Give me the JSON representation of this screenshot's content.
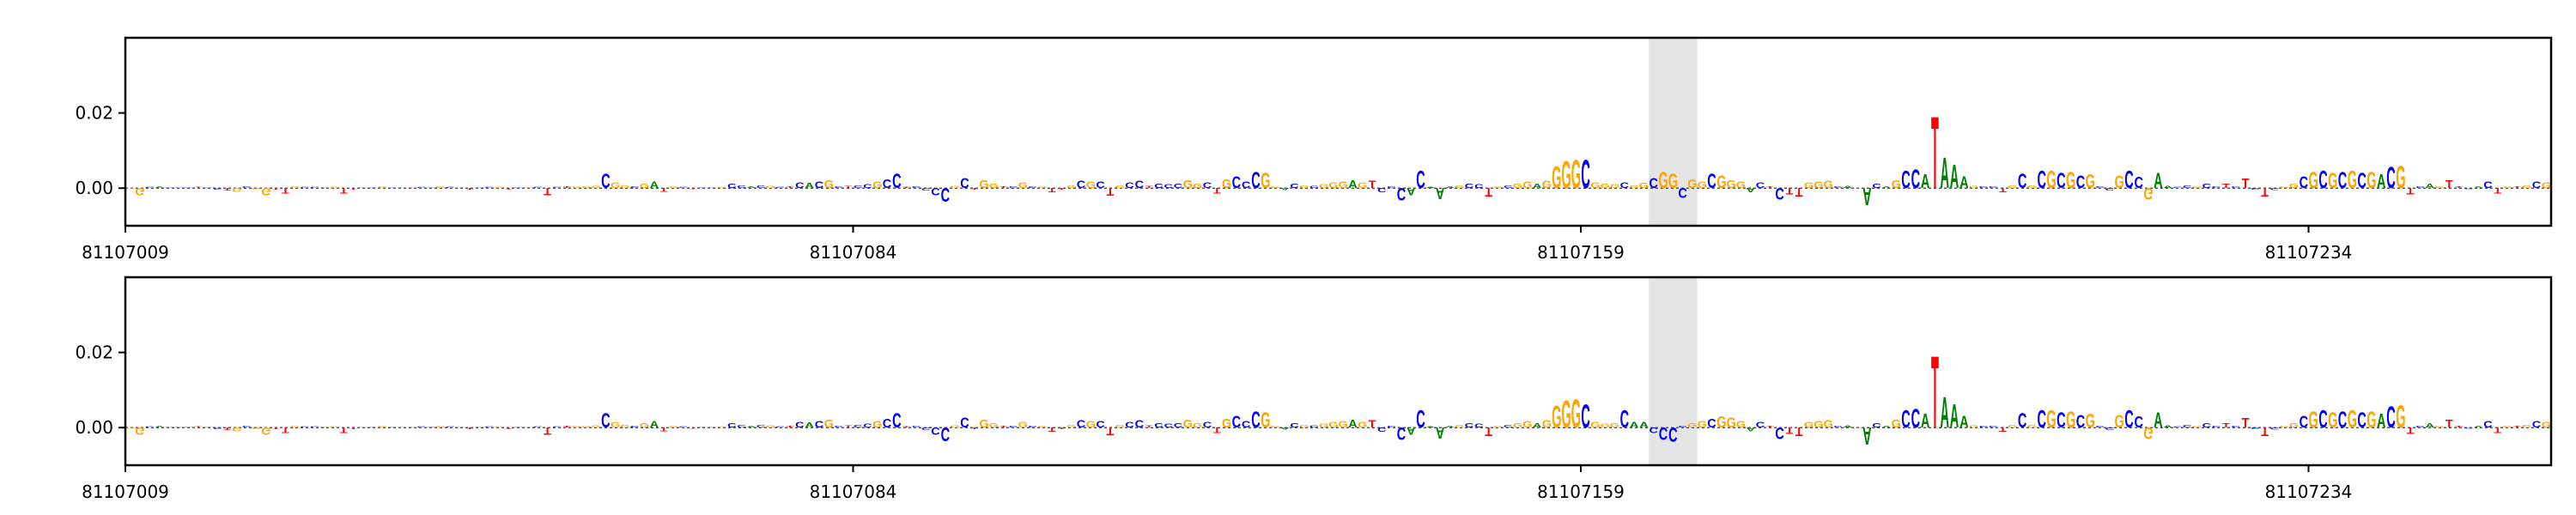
{
  "chart_data": [
    {
      "type": "logo",
      "start": 81107009,
      "xlim": [
        81107009,
        81107259
      ],
      "xticks": [
        81107009,
        81107084,
        81107159,
        81107234
      ],
      "ylim": [
        -0.01,
        0.04
      ],
      "yticks": [
        {
          "value": 0,
          "label": "0.00"
        },
        0.02
      ],
      "highlight": [
        81107166,
        81107171
      ],
      "colors": {
        "A": "#008000",
        "C": "#0000ff",
        "G": "#ffa500",
        "T": "#ff0000"
      },
      "letters": [
        "G",
        "G",
        "C",
        "A",
        "C",
        "C",
        "C",
        "T",
        "C",
        "C",
        "T",
        "G",
        "C",
        "G",
        "G",
        "T",
        "T",
        "G",
        "C",
        "C",
        "C",
        "G",
        "T",
        "T",
        "A",
        "C",
        "G",
        "C",
        "A",
        "T",
        "C",
        "C",
        "G",
        "C",
        "A",
        "T",
        "C",
        "C",
        "G",
        "T",
        "C",
        "T",
        "C",
        "T",
        "C",
        "T",
        "G",
        "G",
        "G",
        "C",
        "G",
        "G",
        "C",
        "G",
        "A",
        "T",
        "G",
        "C",
        "T",
        "C",
        "C",
        "G",
        "C",
        "C",
        "A",
        "C",
        "G",
        "C",
        "T",
        "C",
        "A",
        "C",
        "G",
        "C",
        "T",
        "C",
        "C",
        "G",
        "C",
        "C",
        "T",
        "C",
        "C",
        "C",
        "C",
        "G",
        "C",
        "T",
        "G",
        "G",
        "T",
        "C",
        "G",
        "C",
        "G",
        "T",
        "T",
        "G",
        "C",
        "G",
        "C",
        "T",
        "G",
        "C",
        "C",
        "T",
        "C",
        "C",
        "C",
        "G",
        "G",
        "C",
        "T",
        "G",
        "C",
        "C",
        "C",
        "G",
        "G",
        "A",
        "C",
        "G",
        "C",
        "G",
        "G",
        "G",
        "A",
        "G",
        "T",
        "C",
        "C",
        "C",
        "A",
        "C",
        "A",
        "A",
        "A",
        "G",
        "C",
        "C",
        "T",
        "G",
        "C",
        "G",
        "G",
        "A",
        "G",
        "G",
        "G",
        "G",
        "C",
        "G",
        "G",
        "G",
        "C",
        "G",
        "G",
        "C",
        "G",
        "G",
        "C",
        "G",
        "G",
        "C",
        "G",
        "G",
        "G",
        "A",
        "C",
        "T",
        "C",
        "T",
        "T",
        "G",
        "G",
        "G",
        "C",
        "A",
        "G",
        "A",
        "C",
        "A",
        "G",
        "C",
        "C",
        "A",
        "T",
        "A",
        "A",
        "A",
        "G",
        "C",
        "C",
        "T",
        "G",
        "C",
        "G",
        "C",
        "G",
        "C",
        "G",
        "C",
        "G",
        "C",
        "C",
        "G",
        "C",
        "C",
        "G",
        "A",
        "A",
        "C",
        "C",
        "G",
        "C",
        "C",
        "T",
        "C",
        "T",
        "C",
        "T",
        "C",
        "G",
        "G",
        "C",
        "G",
        "C",
        "G",
        "C",
        "G",
        "C",
        "G",
        "A",
        "C",
        "G",
        "T",
        "C",
        "A",
        "G",
        "T",
        "T",
        "C",
        "A",
        "C",
        "T",
        "G",
        "T",
        "G",
        "C",
        "G"
      ],
      "values": [
        -0.0003,
        -0.002,
        0.0003,
        0.0005,
        0.0002,
        0.0002,
        0.0001,
        0.0003,
        0.0002,
        -0.0005,
        -0.0008,
        -0.001,
        0.0005,
        -0.0005,
        -0.002,
        -0.0005,
        -0.0015,
        0.0005,
        0.0003,
        0.0003,
        0.0002,
        0.0003,
        -0.0015,
        -0.0004,
        0.0002,
        0.0002,
        0.0004,
        0.0002,
        0.0002,
        0.0002,
        0.0003,
        0.0002,
        0.0005,
        0.0003,
        0.0002,
        -0.0004,
        0.0002,
        0.0003,
        0.0003,
        -0.0005,
        0.0002,
        0.0002,
        0.0003,
        -0.002,
        0.0003,
        0.0004,
        0.0005,
        0.0005,
        0.0006,
        0.004,
        0.0015,
        0.0008,
        0.0005,
        0.0012,
        0.0018,
        -0.001,
        0.0004,
        0.0003,
        -0.0003,
        0.0002,
        0.0002,
        0.0003,
        0.0012,
        0.0008,
        0.0004,
        0.0008,
        0.0006,
        0.0003,
        0.0005,
        0.0015,
        0.0014,
        0.0018,
        0.0022,
        0.0005,
        0.0006,
        0.0008,
        0.001,
        0.0018,
        0.0025,
        0.004,
        0.0003,
        0.0004,
        -0.0008,
        -0.002,
        -0.0038,
        0.0006,
        0.0028,
        -0.0004,
        0.0022,
        0.0012,
        0.0004,
        0.0005,
        0.0015,
        0.0005,
        0.0004,
        -0.0012,
        -0.0004,
        0.0008,
        0.002,
        0.0018,
        0.0018,
        -0.0022,
        0.0008,
        0.0015,
        0.002,
        0.0006,
        0.0012,
        0.001,
        0.0012,
        0.0022,
        0.0012,
        0.0016,
        -0.0016,
        0.0024,
        0.0032,
        0.0018,
        0.0045,
        0.0042,
        0.0004,
        -0.0006,
        0.0012,
        0.0008,
        0.0006,
        0.001,
        0.0015,
        0.0018,
        0.0022,
        0.0015,
        0.002,
        -0.0012,
        0.0005,
        -0.0035,
        -0.002,
        0.0048,
        0.0003,
        -0.003,
        0.0004,
        0.0008,
        0.0012,
        0.001,
        -0.0025,
        0.0005,
        0.0008,
        0.0012,
        0.0018,
        0.0012,
        0.002,
        0.006,
        0.0075,
        0.0078,
        0.0078,
        0.0015,
        0.0012,
        0.001,
        0.0015,
        0.0008,
        0.0014,
        0.0028,
        0.0045,
        0.004,
        -0.0028,
        0.0025,
        0.0018,
        0.004,
        0.0035,
        0.0022,
        0.0018,
        -0.0012,
        0.0015,
        0.0005,
        -0.0032,
        -0.0018,
        -0.0025,
        0.0015,
        0.0018,
        0.002,
        0.0004,
        0.0006,
        -0.0002,
        -0.0048,
        0.0012,
        0.0004,
        0.0022,
        0.0048,
        0.0052,
        0.0038,
        0.02,
        0.0085,
        0.0065,
        0.0032,
        0.0006,
        0.0004,
        0.0005,
        -0.0012,
        0.0008,
        0.004,
        0.0008,
        0.0048,
        0.0048,
        0.0042,
        0.0045,
        0.0036,
        0.0038,
        0.0004,
        -0.0008,
        0.0035,
        0.0048,
        0.003,
        -0.0032,
        0.0042,
        0.0006,
        0.0003,
        0.0008,
        0.0005,
        0.0012,
        0.0004,
        0.0012,
        0.0004,
        0.0026,
        -0.0004,
        -0.0024,
        -0.0006,
        0.0005,
        0.0012,
        0.0032,
        0.0045,
        0.0048,
        0.0042,
        0.0045,
        0.0048,
        0.0042,
        0.0045,
        0.0038,
        0.0058,
        0.0062,
        -0.0018,
        0.0004,
        0.0012,
        0.0005,
        0.0022,
        0.0004,
        -0.0003,
        0.0005,
        0.0018,
        -0.0016,
        0.0005,
        0.0004,
        0.0008,
        0.0018,
        0.0016
      ]
    },
    {
      "type": "logo",
      "start": 81107009,
      "xlim": [
        81107009,
        81107259
      ],
      "xticks": [
        81107009,
        81107084,
        81107159,
        81107234
      ],
      "ylim": [
        -0.01,
        0.04
      ],
      "yticks": [
        {
          "value": 0,
          "label": "0.00"
        },
        0.02
      ],
      "highlight": [
        81107166,
        81107171
      ],
      "colors": {
        "A": "#008000",
        "C": "#0000ff",
        "G": "#ffa500",
        "T": "#ff0000"
      },
      "letters": [
        "G",
        "G",
        "C",
        "A",
        "C",
        "C",
        "C",
        "T",
        "C",
        "C",
        "T",
        "G",
        "C",
        "G",
        "G",
        "T",
        "T",
        "G",
        "C",
        "C",
        "C",
        "G",
        "T",
        "T",
        "A",
        "C",
        "G",
        "C",
        "A",
        "T",
        "C",
        "C",
        "G",
        "C",
        "A",
        "T",
        "C",
        "C",
        "G",
        "T",
        "C",
        "T",
        "C",
        "T",
        "C",
        "T",
        "G",
        "G",
        "G",
        "C",
        "G",
        "G",
        "C",
        "G",
        "A",
        "T",
        "G",
        "C",
        "T",
        "C",
        "C",
        "G",
        "C",
        "C",
        "A",
        "C",
        "G",
        "C",
        "T",
        "C",
        "A",
        "C",
        "G",
        "C",
        "T",
        "C",
        "C",
        "G",
        "C",
        "C",
        "T",
        "C",
        "C",
        "C",
        "C",
        "G",
        "C",
        "T",
        "G",
        "G",
        "T",
        "C",
        "G",
        "C",
        "G",
        "T",
        "T",
        "G",
        "C",
        "G",
        "C",
        "T",
        "G",
        "C",
        "C",
        "T",
        "C",
        "C",
        "C",
        "G",
        "G",
        "C",
        "T",
        "G",
        "C",
        "C",
        "C",
        "G",
        "G",
        "A",
        "C",
        "G",
        "C",
        "G",
        "G",
        "G",
        "A",
        "G",
        "T",
        "C",
        "C",
        "C",
        "A",
        "C",
        "A",
        "A",
        "A",
        "G",
        "C",
        "C",
        "T",
        "G",
        "C",
        "G",
        "G",
        "A",
        "G",
        "G",
        "G",
        "G",
        "C",
        "G",
        "G",
        "G",
        "C",
        "A",
        "A",
        "C",
        "C",
        "C",
        "C",
        "G",
        "G",
        "C",
        "G",
        "G",
        "G",
        "A",
        "C",
        "T",
        "C",
        "T",
        "T",
        "G",
        "G",
        "G",
        "C",
        "A",
        "G",
        "A",
        "C",
        "A",
        "G",
        "C",
        "C",
        "A",
        "T",
        "A",
        "A",
        "A",
        "G",
        "C",
        "C",
        "T",
        "G",
        "C",
        "G",
        "C",
        "G",
        "C",
        "G",
        "C",
        "G",
        "C",
        "C",
        "G",
        "C",
        "C",
        "G",
        "A",
        "A",
        "C",
        "C",
        "G",
        "C",
        "C",
        "T",
        "C",
        "T",
        "C",
        "T",
        "C",
        "G",
        "G",
        "C",
        "G",
        "C",
        "G",
        "C",
        "G",
        "C",
        "G",
        "A",
        "C",
        "G",
        "T",
        "C",
        "A",
        "G",
        "T",
        "T",
        "C",
        "A",
        "C",
        "T",
        "G",
        "T",
        "G",
        "C",
        "G"
      ],
      "values": [
        -0.0003,
        -0.002,
        0.0003,
        0.0005,
        0.0002,
        0.0002,
        0.0001,
        0.0003,
        0.0002,
        -0.0005,
        -0.0008,
        -0.001,
        0.0005,
        -0.0005,
        -0.002,
        -0.0005,
        -0.0015,
        0.0005,
        0.0003,
        0.0003,
        0.0002,
        0.0003,
        -0.0015,
        -0.0004,
        0.0002,
        0.0002,
        0.0004,
        0.0002,
        0.0002,
        0.0002,
        0.0003,
        0.0002,
        0.0005,
        0.0003,
        0.0002,
        -0.0004,
        0.0002,
        0.0003,
        0.0003,
        -0.0005,
        0.0002,
        0.0002,
        0.0003,
        -0.002,
        0.0003,
        0.0004,
        0.0005,
        0.0005,
        0.0006,
        0.004,
        0.0015,
        0.0008,
        0.0005,
        0.0012,
        0.0018,
        -0.001,
        0.0004,
        0.0003,
        -0.0003,
        0.0002,
        0.0002,
        0.0003,
        0.0012,
        0.0008,
        0.0004,
        0.0008,
        0.0006,
        0.0003,
        0.0005,
        0.0015,
        0.0014,
        0.0018,
        0.0022,
        0.0005,
        0.0006,
        0.0008,
        0.001,
        0.0018,
        0.0025,
        0.004,
        0.0003,
        0.0004,
        -0.0008,
        -0.002,
        -0.0038,
        0.0006,
        0.0028,
        -0.0004,
        0.0022,
        0.0012,
        0.0004,
        0.0005,
        0.0015,
        0.0005,
        0.0004,
        -0.0012,
        -0.0004,
        0.0008,
        0.002,
        0.0018,
        0.0018,
        -0.0022,
        0.0008,
        0.0015,
        0.002,
        0.0006,
        0.0012,
        0.001,
        0.0012,
        0.0022,
        0.0012,
        0.0016,
        -0.0016,
        0.0024,
        0.0032,
        0.0018,
        0.0045,
        0.0042,
        0.0004,
        -0.0006,
        0.0012,
        0.0008,
        0.0006,
        0.001,
        0.0015,
        0.0018,
        0.0022,
        0.0015,
        0.002,
        -0.0012,
        0.0005,
        -0.0035,
        -0.002,
        0.0048,
        0.0003,
        -0.003,
        0.0004,
        0.0008,
        0.0012,
        0.001,
        -0.0025,
        0.0005,
        0.0008,
        0.0012,
        0.0018,
        0.0012,
        0.002,
        0.006,
        0.0075,
        0.0078,
        0.0065,
        0.0015,
        0.001,
        0.0012,
        0.0048,
        0.0015,
        0.0015,
        -0.0015,
        -0.0035,
        -0.004,
        0.0005,
        0.0012,
        0.0018,
        0.0025,
        0.003,
        0.0028,
        0.0018,
        -0.001,
        0.0015,
        0.0005,
        -0.0032,
        -0.0018,
        -0.0025,
        0.0015,
        0.0018,
        0.002,
        0.0004,
        0.0006,
        -0.0002,
        -0.0048,
        0.0012,
        0.0004,
        0.0022,
        0.0048,
        0.0052,
        0.0038,
        0.02,
        0.0085,
        0.0065,
        0.0032,
        0.0006,
        0.0004,
        0.0005,
        -0.0012,
        0.0008,
        0.004,
        0.0008,
        0.0048,
        0.0048,
        0.0042,
        0.0045,
        0.0036,
        0.0038,
        0.0004,
        -0.0008,
        0.0035,
        0.0048,
        0.003,
        -0.0032,
        0.0042,
        0.0006,
        0.0003,
        0.0008,
        0.0005,
        0.0012,
        0.0004,
        0.0012,
        0.0004,
        0.0026,
        -0.0004,
        -0.0024,
        -0.0006,
        0.0005,
        0.0012,
        0.0032,
        0.0045,
        0.0048,
        0.0042,
        0.0045,
        0.0048,
        0.0042,
        0.0045,
        0.0038,
        0.0058,
        0.0062,
        -0.0018,
        0.0004,
        0.0012,
        0.0005,
        0.0022,
        0.0004,
        -0.0003,
        0.0005,
        0.0018,
        -0.0016,
        0.0005,
        0.0004,
        0.0008,
        0.0018,
        0.0016
      ]
    }
  ]
}
